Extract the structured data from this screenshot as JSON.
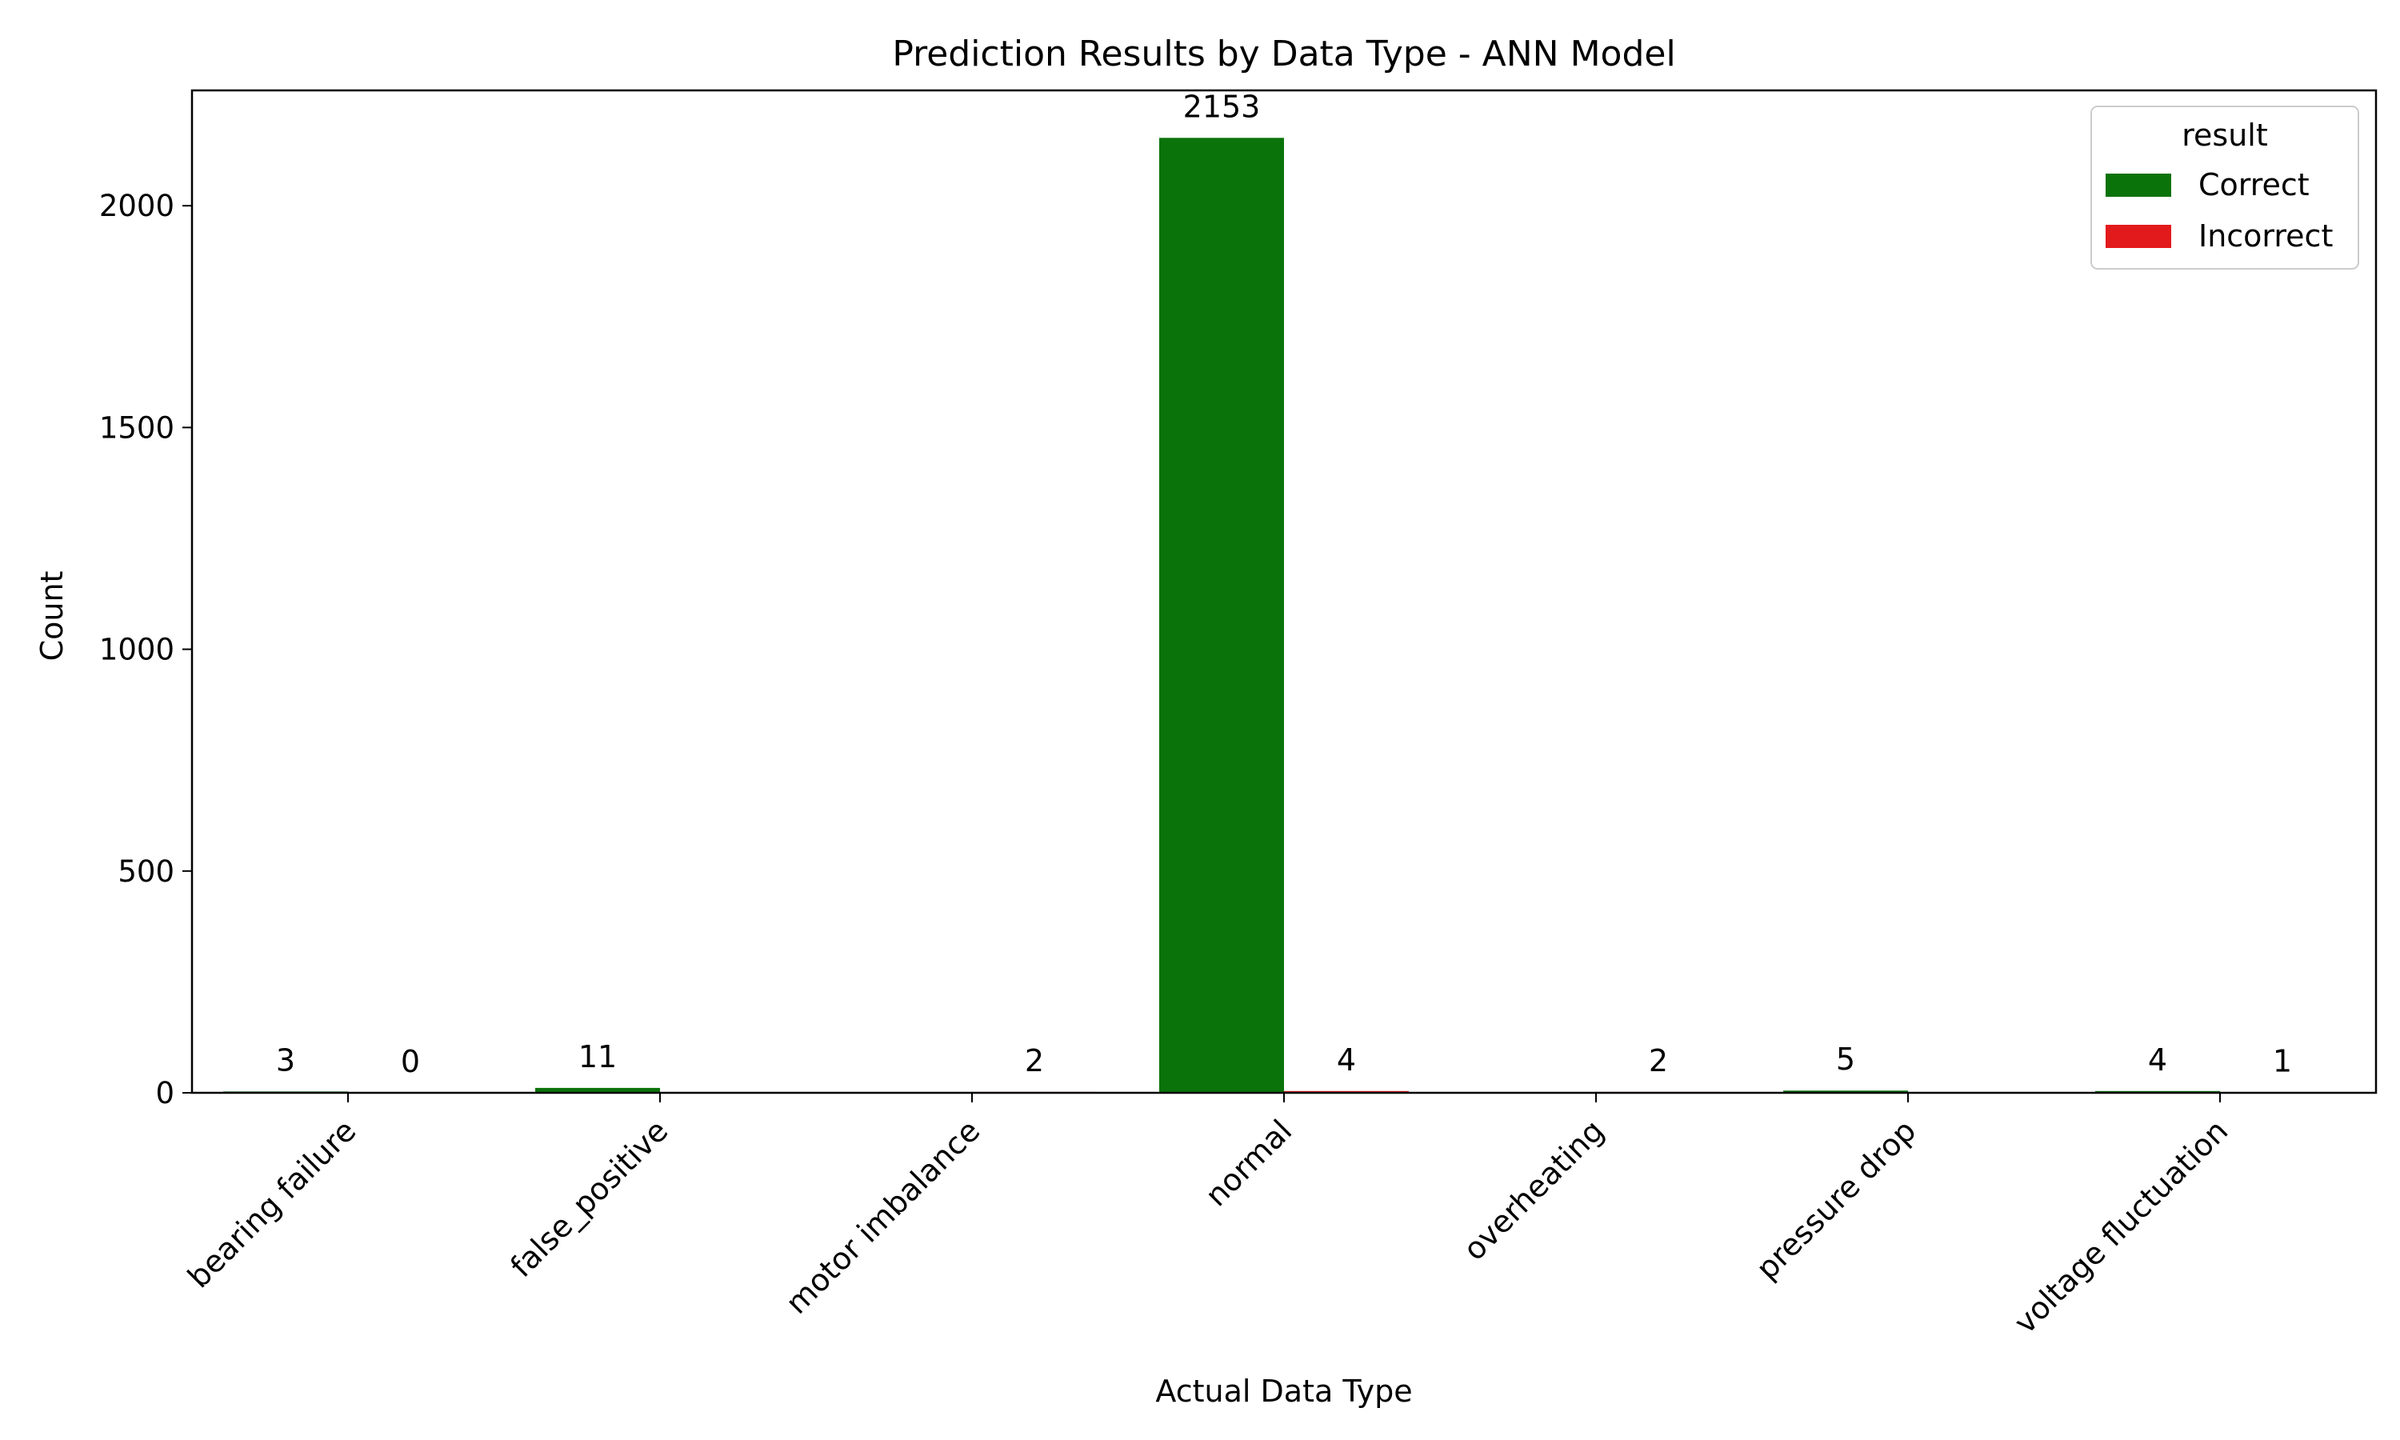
{
  "chart_data": {
    "type": "bar",
    "title": "Prediction Results by Data Type - ANN Model",
    "xlabel": "Actual Data Type",
    "ylabel": "Count",
    "categories": [
      "bearing failure",
      "false_positive",
      "motor imbalance",
      "normal",
      "overheating",
      "pressure drop",
      "voltage fluctuation"
    ],
    "series": [
      {
        "name": "Correct",
        "color": "#0a730a",
        "values": [
          3,
          11,
          0,
          2153,
          0,
          5,
          4
        ]
      },
      {
        "name": "Incorrect",
        "color": "#e31a1c",
        "values": [
          0,
          0,
          2,
          4,
          2,
          0,
          1
        ]
      }
    ],
    "bar_labels": [
      {
        "category": "bearing failure",
        "series": "Correct",
        "text": "3"
      },
      {
        "category": "bearing failure",
        "series": "Incorrect",
        "text": "0"
      },
      {
        "category": "false_positive",
        "series": "Correct",
        "text": "11"
      },
      {
        "category": "motor imbalance",
        "series": "Incorrect",
        "text": "2"
      },
      {
        "category": "normal",
        "series": "Correct",
        "text": "2153"
      },
      {
        "category": "normal",
        "series": "Incorrect",
        "text": "4"
      },
      {
        "category": "overheating",
        "series": "Incorrect",
        "text": "2"
      },
      {
        "category": "pressure drop",
        "series": "Correct",
        "text": "5"
      },
      {
        "category": "voltage fluctuation",
        "series": "Correct",
        "text": "4"
      },
      {
        "category": "voltage fluctuation",
        "series": "Incorrect",
        "text": "1"
      }
    ],
    "yticks": [
      0,
      500,
      1000,
      1500,
      2000
    ],
    "ylim": [
      0,
      2260
    ],
    "legend": {
      "title": "result",
      "position": "top-right"
    },
    "grid": false
  }
}
